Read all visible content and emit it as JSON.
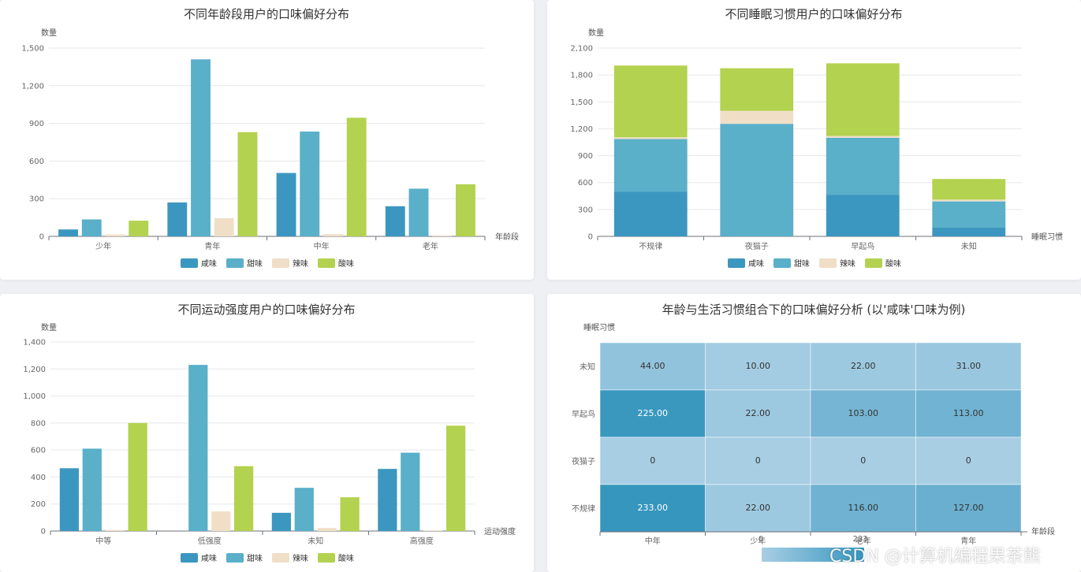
{
  "colors": {
    "salty": "#3c97c0",
    "sweet": "#5aafc9",
    "spicy": "#f0dfc6",
    "sour": "#b3d24f"
  },
  "legend": [
    "咸味",
    "甜味",
    "辣味",
    "酸味"
  ],
  "chart_data": [
    {
      "type": "bar",
      "title": "不同年龄段用户的口味偏好分布",
      "xlabel": "年龄段",
      "ylabel": "数量",
      "categories": [
        "少年",
        "青年",
        "中年",
        "老年"
      ],
      "ylim": [
        0,
        1500
      ],
      "yticks": [
        "0",
        "300",
        "600",
        "900",
        "1,200",
        "1,500"
      ],
      "series": [
        {
          "name": "咸味",
          "values": [
            55,
            270,
            505,
            240
          ]
        },
        {
          "name": "甜味",
          "values": [
            135,
            1410,
            835,
            380
          ]
        },
        {
          "name": "辣味",
          "values": [
            15,
            145,
            18,
            8
          ]
        },
        {
          "name": "酸味",
          "values": [
            125,
            830,
            945,
            415
          ]
        }
      ]
    },
    {
      "type": "bar",
      "stacked": true,
      "title": "不同睡眠习惯用户的口味偏好分布",
      "xlabel": "睡眠习惯",
      "ylabel": "数量",
      "categories": [
        "不规律",
        "夜猫子",
        "早起鸟",
        "未知"
      ],
      "ylim": [
        0,
        2100
      ],
      "yticks": [
        "0",
        "300",
        "600",
        "900",
        "1,200",
        "1,500",
        "1,800",
        "2,100"
      ],
      "series": [
        {
          "name": "咸味",
          "values": [
            500,
            0,
            465,
            100
          ]
        },
        {
          "name": "甜味",
          "values": [
            585,
            1255,
            635,
            290
          ]
        },
        {
          "name": "辣味",
          "values": [
            20,
            145,
            20,
            20
          ]
        },
        {
          "name": "酸味",
          "values": [
            800,
            475,
            810,
            230
          ]
        }
      ]
    },
    {
      "type": "bar",
      "title": "不同运动强度用户的口味偏好分布",
      "xlabel": "运动强度",
      "ylabel": "数量",
      "categories": [
        "中等",
        "低强度",
        "未知",
        "高强度"
      ],
      "ylim": [
        0,
        1400
      ],
      "yticks": [
        "0",
        "200",
        "400",
        "600",
        "800",
        "1,000",
        "1,200",
        "1,400"
      ],
      "series": [
        {
          "name": "咸味",
          "values": [
            465,
            0,
            135,
            460
          ]
        },
        {
          "name": "甜味",
          "values": [
            610,
            1230,
            320,
            580
          ]
        },
        {
          "name": "辣味",
          "values": [
            8,
            145,
            22,
            5
          ]
        },
        {
          "name": "酸味",
          "values": [
            800,
            480,
            250,
            780
          ]
        }
      ]
    },
    {
      "type": "heatmap",
      "title": "年龄与生活习惯组合下的口味偏好分析 (以'咸味'口味为例)",
      "xlabel": "年龄段",
      "ylabel": "睡眠习惯",
      "x": [
        "中年",
        "少年",
        "老年",
        "青年"
      ],
      "y": [
        "未知",
        "早起鸟",
        "夜猫子",
        "不规律"
      ],
      "values": [
        [
          "44.00",
          "10.00",
          "22.00",
          "31.00"
        ],
        [
          "225.00",
          "22.00",
          "103.00",
          "113.00"
        ],
        [
          "0",
          "0",
          "0",
          "0"
        ],
        [
          "233.00",
          "22.00",
          "116.00",
          "127.00"
        ]
      ],
      "numeric": [
        [
          44,
          10,
          22,
          31
        ],
        [
          225,
          22,
          103,
          113
        ],
        [
          0,
          0,
          0,
          0
        ],
        [
          233,
          22,
          116,
          127
        ]
      ],
      "visual_map": {
        "min": "0",
        "max": "233"
      }
    }
  ],
  "watermark": "CSDN @计算机编程果茶熊"
}
